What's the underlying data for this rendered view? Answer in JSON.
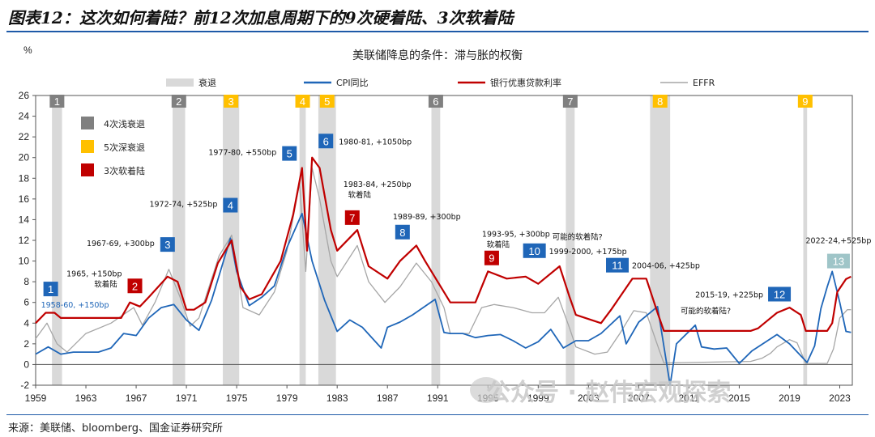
{
  "figure_title": "图表12：这次如何着陆？前12次加息周期下的9次硬着陆、3次软着陆",
  "source": "来源：美联储、bloomberg、国金证券研究所",
  "watermark": "公众号 · 赵伟宏观探索",
  "chart_data": {
    "type": "line",
    "title": "美联储降息的条件：滞与胀的权衡",
    "ylabel": "%",
    "ylim": [
      -2,
      26
    ],
    "xlim": [
      1959,
      2024
    ],
    "yticks": [
      -2,
      0,
      2,
      4,
      6,
      8,
      10,
      12,
      14,
      16,
      18,
      20,
      22,
      24,
      26
    ],
    "xticks": [
      1959,
      1963,
      1967,
      1971,
      1975,
      1979,
      1983,
      1987,
      1991,
      1995,
      1999,
      2003,
      2007,
      2011,
      2015,
      2019,
      2023
    ],
    "top_legend": [
      "衰退",
      "CPI同比",
      "银行优惠贷款利率",
      "EFFR"
    ],
    "side_legend": [
      {
        "label": "4次浅衰退",
        "color": "#808080"
      },
      {
        "label": "5次深衰退",
        "color": "#ffc000"
      },
      {
        "label": "3次软着陆",
        "color": "#c00000"
      }
    ],
    "colors": {
      "recession": "#d9d9d9",
      "cpi": "#1f66b8",
      "prime": "#c00000",
      "effr": "#a6a6a6"
    },
    "recessions": [
      {
        "start": 1960.3,
        "end": 1961.1,
        "num": "1",
        "kind": "shallow"
      },
      {
        "start": 1969.9,
        "end": 1970.9,
        "num": "2",
        "kind": "shallow"
      },
      {
        "start": 1973.9,
        "end": 1975.2,
        "num": "3",
        "kind": "deep"
      },
      {
        "start": 1980.0,
        "end": 1980.5,
        "num": "4",
        "kind": "deep"
      },
      {
        "start": 1981.5,
        "end": 1982.9,
        "num": "5",
        "kind": "deep"
      },
      {
        "start": 1990.5,
        "end": 1991.2,
        "num": "6",
        "kind": "shallow"
      },
      {
        "start": 2001.2,
        "end": 2001.9,
        "num": "7",
        "kind": "shallow"
      },
      {
        "start": 2007.9,
        "end": 2009.5,
        "num": "8",
        "kind": "deep"
      },
      {
        "start": 2020.1,
        "end": 2020.4,
        "num": "9",
        "kind": "deep"
      }
    ],
    "cycles": [
      {
        "num": "1",
        "kind": "hike",
        "x": 1960.2,
        "y": 7.3,
        "label": "1958-60, +150bp"
      },
      {
        "num": "2",
        "kind": "soft",
        "x": 1966.9,
        "y": 7.6,
        "label": "1965, +150bp",
        "sub": "软着陆"
      },
      {
        "num": "3",
        "kind": "hike",
        "x": 1969.5,
        "y": 11.6,
        "label": "1967-69, +300bp"
      },
      {
        "num": "4",
        "kind": "hike",
        "x": 1974.5,
        "y": 15.4,
        "label": "1972-74, +525bp"
      },
      {
        "num": "5",
        "kind": "hike",
        "x": 1979.2,
        "y": 20.4,
        "label": "1977-80, +550bp"
      },
      {
        "num": "6",
        "kind": "hike",
        "x": 1982.1,
        "y": 21.6,
        "label": "1980-81, +1050bp"
      },
      {
        "num": "7",
        "kind": "soft",
        "x": 1984.2,
        "y": 14.2,
        "label": "1983-84, +250bp",
        "sub": "软着陆"
      },
      {
        "num": "8",
        "kind": "hike",
        "x": 1988.2,
        "y": 12.8,
        "label": "1989-89, +300bp"
      },
      {
        "num": "9",
        "kind": "soft",
        "x": 1995.3,
        "y": 10.3,
        "label": "1993-95, +300bp",
        "sub": "软着陆"
      },
      {
        "num": "10",
        "kind": "hike",
        "x": 1998.7,
        "y": 11.0,
        "label": "1999-2000, +175bp",
        "sup": "可能的软着陆?"
      },
      {
        "num": "11",
        "kind": "hike",
        "x": 2005.3,
        "y": 9.6,
        "label": "2004-06, +425bp"
      },
      {
        "num": "12",
        "kind": "hike",
        "x": 2018.2,
        "y": 6.8,
        "label": "2015-19, +225bp",
        "sub": "可能的软着陆?"
      },
      {
        "num": "13",
        "kind": "current",
        "x": 2022.9,
        "y": 10.0,
        "label": "2022-24,+525bp"
      }
    ],
    "series": [
      {
        "name": "银行优惠贷款利率",
        "x": [
          1959,
          1959.8,
          1960.5,
          1961,
          1965.8,
          1966.5,
          1967.3,
          1968,
          1969.5,
          1970.3,
          1971,
          1971.6,
          1972.5,
          1973.5,
          1974.6,
          1975.3,
          1976,
          1977,
          1978.5,
          1979.5,
          1980.2,
          1980.6,
          1981,
          1981.6,
          1982.5,
          1983,
          1984.6,
          1985.5,
          1987,
          1988,
          1989.3,
          1990,
          1991,
          1992,
          1994,
          1995,
          1996.5,
          1998,
          1999,
          2000.7,
          2001.5,
          2002,
          2004,
          2004.8,
          2006.5,
          2007.6,
          2008.5,
          2009,
          2015.9,
          2016.5,
          2017,
          2018,
          2019,
          2019.9,
          2020.3,
          2022,
          2022.4,
          2022.8,
          2023.5,
          2023.9
        ],
        "values": [
          4.0,
          5.0,
          5.0,
          4.5,
          4.5,
          6.0,
          5.6,
          6.5,
          8.5,
          8.0,
          5.3,
          5.3,
          6.0,
          9.8,
          12.0,
          7.5,
          6.3,
          6.8,
          10.0,
          14.5,
          19.0,
          11.0,
          20.0,
          19.0,
          13.0,
          11.0,
          13.0,
          9.5,
          8.3,
          10.0,
          11.5,
          10.0,
          8.0,
          6.0,
          6.0,
          9.0,
          8.3,
          8.5,
          7.8,
          9.5,
          6.5,
          4.8,
          4.0,
          5.3,
          8.3,
          8.3,
          5.0,
          3.25,
          3.25,
          3.5,
          4.0,
          5.0,
          5.5,
          4.8,
          3.25,
          3.25,
          4.0,
          7.0,
          8.25,
          8.5
        ]
      },
      {
        "name": "CPI同比",
        "x": [
          1959,
          1960,
          1961,
          1962,
          1964,
          1965,
          1966,
          1967,
          1968,
          1969,
          1970,
          1971,
          1972,
          1973,
          1974.5,
          1975,
          1976,
          1977,
          1978,
          1979,
          1980.2,
          1981,
          1982,
          1983,
          1984,
          1985,
          1986.5,
          1987,
          1988,
          1989,
          1990.8,
          1991.5,
          1992,
          1993,
          1994,
          1995,
          1996,
          1997,
          1998,
          1999,
          2000,
          2001,
          2002,
          2003,
          2004,
          2005.5,
          2006,
          2007,
          2008.5,
          2009.5,
          2010,
          2011.5,
          2012,
          2013,
          2014,
          2015,
          2016,
          2017,
          2018,
          2019,
          2020.4,
          2021,
          2021.5,
          2022,
          2022.4,
          2023,
          2023.5,
          2023.9
        ],
        "values": [
          1.0,
          1.7,
          1.0,
          1.2,
          1.2,
          1.6,
          3.0,
          2.8,
          4.5,
          5.5,
          5.8,
          4.3,
          3.3,
          6.2,
          12.2,
          9.0,
          5.7,
          6.5,
          7.6,
          11.3,
          14.6,
          10.0,
          6.2,
          3.2,
          4.3,
          3.6,
          1.6,
          3.6,
          4.1,
          4.8,
          6.3,
          3.1,
          3.0,
          3.0,
          2.6,
          2.8,
          2.9,
          2.3,
          1.6,
          2.2,
          3.4,
          1.6,
          2.3,
          2.3,
          3.0,
          4.7,
          2.0,
          4.1,
          5.6,
          -2.0,
          2.0,
          3.8,
          1.7,
          1.5,
          1.6,
          0.1,
          1.3,
          2.1,
          2.9,
          2.0,
          0.2,
          1.8,
          5.4,
          7.5,
          9.0,
          6.0,
          3.2,
          3.1
        ]
      },
      {
        "name": "EFFR",
        "x": [
          1959,
          1959.9,
          1960.7,
          1961.5,
          1963,
          1965,
          1966.8,
          1967.5,
          1968.5,
          1969.6,
          1970.5,
          1971.3,
          1972,
          1973.6,
          1974.6,
          1975.5,
          1976.8,
          1978,
          1979,
          1980,
          1980.5,
          1981,
          1981.6,
          1982.5,
          1983,
          1984.6,
          1985.5,
          1986.8,
          1988,
          1989.3,
          1990.5,
          1991.5,
          1992,
          1993.5,
          1994.5,
          1995.5,
          1997,
          1998.5,
          1999.5,
          2000.6,
          2001.5,
          2002,
          2003.5,
          2004.5,
          2005.5,
          2006.6,
          2007.6,
          2008.6,
          2009,
          2015.9,
          2016.8,
          2017.5,
          2018,
          2019,
          2019.6,
          2020.3,
          2022,
          2022.5,
          2023,
          2023.6,
          2023.9
        ],
        "values": [
          2.5,
          4.0,
          2.0,
          1.2,
          3.0,
          4.0,
          5.5,
          3.8,
          6.0,
          9.2,
          6.5,
          3.7,
          4.5,
          10.5,
          12.5,
          5.5,
          4.8,
          7.0,
          11.0,
          17.5,
          9.0,
          19.0,
          16.0,
          10.0,
          8.5,
          11.5,
          8.0,
          6.0,
          7.5,
          9.8,
          8.0,
          5.5,
          3.0,
          3.0,
          5.5,
          5.8,
          5.5,
          5.0,
          5.0,
          6.5,
          3.5,
          1.7,
          1.0,
          1.2,
          3.0,
          5.2,
          5.0,
          1.5,
          0.15,
          0.3,
          0.6,
          1.1,
          1.7,
          2.4,
          2.1,
          0.1,
          0.1,
          1.5,
          4.5,
          5.3,
          5.3
        ]
      }
    ]
  }
}
